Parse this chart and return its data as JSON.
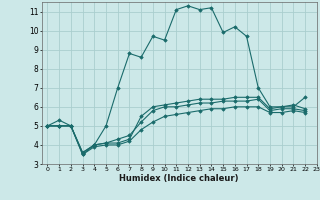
{
  "xlabel": "Humidex (Indice chaleur)",
  "bg_color": "#cce8e8",
  "grid_color": "#aacece",
  "line_color": "#1a6b6b",
  "xlim": [
    -0.5,
    23
  ],
  "ylim": [
    3,
    11.5
  ],
  "yticks": [
    3,
    4,
    5,
    6,
    7,
    8,
    9,
    10,
    11
  ],
  "xticks": [
    0,
    1,
    2,
    3,
    4,
    5,
    6,
    7,
    8,
    9,
    10,
    11,
    12,
    13,
    14,
    15,
    16,
    17,
    18,
    19,
    20,
    21,
    22,
    23
  ],
  "series": [
    {
      "x": [
        0,
        1,
        2,
        3,
        4,
        5,
        6,
        7,
        8,
        9,
        10,
        11,
        12,
        13,
        14,
        15,
        16,
        17,
        18,
        19,
        20,
        21,
        22
      ],
      "y": [
        5.0,
        5.3,
        5.0,
        3.5,
        4.0,
        5.0,
        7.0,
        8.8,
        8.6,
        9.7,
        9.5,
        11.1,
        11.3,
        11.1,
        11.2,
        9.9,
        10.2,
        9.7,
        7.0,
        6.0,
        6.0,
        6.0,
        6.5
      ]
    },
    {
      "x": [
        0,
        1,
        2,
        3,
        4,
        5,
        6,
        7,
        8,
        9,
        10,
        11,
        12,
        13,
        14,
        15,
        16,
        17,
        18,
        19,
        20,
        21,
        22
      ],
      "y": [
        5.0,
        5.0,
        5.0,
        3.6,
        4.0,
        4.1,
        4.1,
        4.3,
        5.5,
        6.0,
        6.1,
        6.2,
        6.3,
        6.4,
        6.4,
        6.4,
        6.5,
        6.5,
        6.5,
        5.9,
        6.0,
        6.1,
        5.9
      ]
    },
    {
      "x": [
        0,
        1,
        2,
        3,
        4,
        5,
        6,
        7,
        8,
        9,
        10,
        11,
        12,
        13,
        14,
        15,
        16,
        17,
        18,
        19,
        20,
        21,
        22
      ],
      "y": [
        5.0,
        5.0,
        5.0,
        3.6,
        4.0,
        4.1,
        4.3,
        4.5,
        5.2,
        5.8,
        6.0,
        6.0,
        6.1,
        6.2,
        6.2,
        6.3,
        6.3,
        6.3,
        6.4,
        5.8,
        5.9,
        5.9,
        5.8
      ]
    },
    {
      "x": [
        0,
        1,
        2,
        3,
        4,
        5,
        6,
        7,
        8,
        9,
        10,
        11,
        12,
        13,
        14,
        15,
        16,
        17,
        18,
        19,
        20,
        21,
        22
      ],
      "y": [
        5.0,
        5.0,
        5.0,
        3.5,
        3.9,
        4.0,
        4.0,
        4.2,
        4.8,
        5.2,
        5.5,
        5.6,
        5.7,
        5.8,
        5.9,
        5.9,
        6.0,
        6.0,
        6.0,
        5.7,
        5.7,
        5.8,
        5.7
      ]
    }
  ]
}
